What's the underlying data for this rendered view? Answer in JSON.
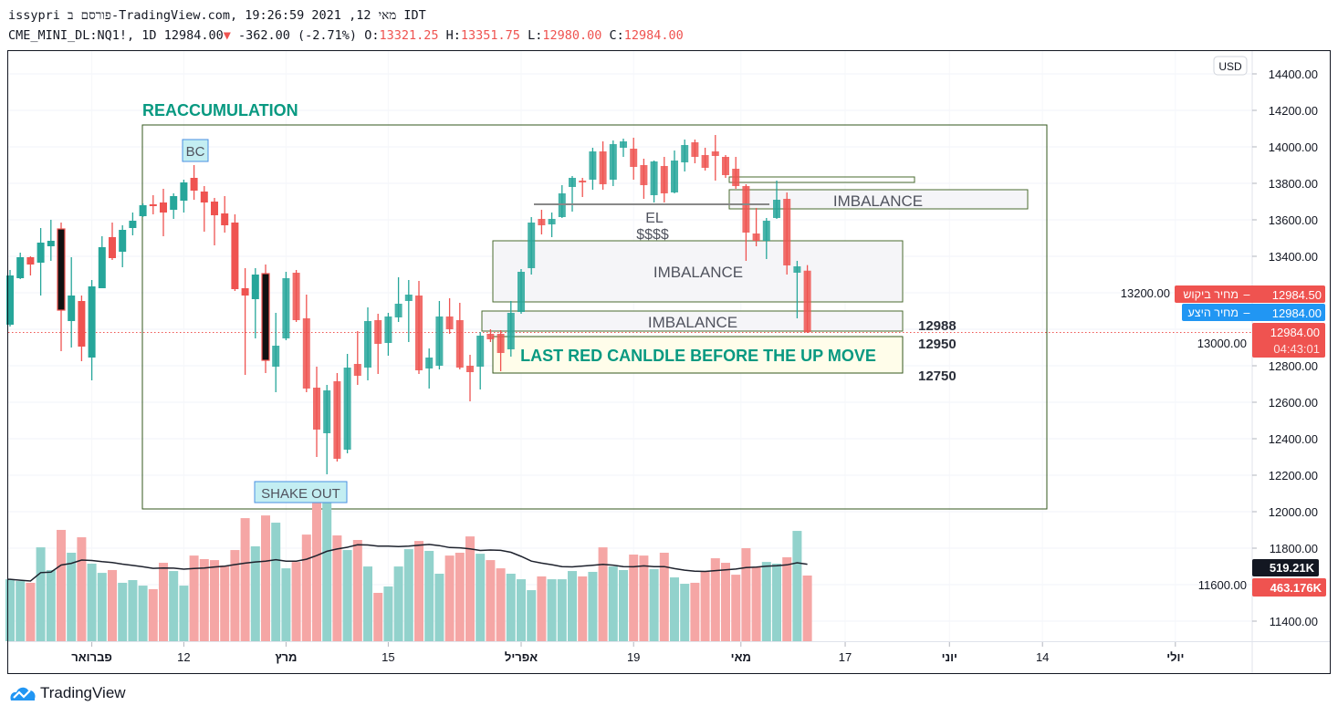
{
  "header": {
    "published_line": "issypri פורסם ב-TradingView.com, מאי 12, 2021 19:26:59 IDT",
    "symbol": "CME_MINI_DL:NQ1!, 1D",
    "last": "12984.00",
    "change": "-362.00 (-2.71%)",
    "o_label": "O:",
    "o": "13321.25",
    "h_label": "H:",
    "h": "13351.75",
    "l_label": "L:",
    "l": "12980.00",
    "c_label": "C:",
    "c": "12984.00"
  },
  "price_axis": {
    "currency": "USD",
    "bid_label": "מחיר ביקוש",
    "bid": "12984.50",
    "ask_label": "מחיר היצע",
    "ask": "12984.00",
    "last_price": "12984.00",
    "countdown": "04:43:01",
    "volume_ma_tag": "519.21K",
    "volume_tag": "463.176K"
  },
  "annotations": {
    "reaccumulation": "REACCUMULATION",
    "bc": "BC",
    "shake_out": "SHAKE OUT",
    "el": "EL",
    "dollars": "$$$$",
    "imbalance_top": "IMBALANCE",
    "imbalance_mid": "IMBALANCE",
    "imbalance_low": "IMBALANCE",
    "last_red": "LAST RED CANLDLE BEFORE THE UP MOVE",
    "level_1": "12988",
    "level_2": "12950",
    "level_3": "12750"
  },
  "footer": {
    "brand": "TradingView"
  },
  "colors": {
    "up": "#26a69a",
    "down": "#ef5350",
    "up_vol": "#92d2cc",
    "down_vol": "#f5a6a5",
    "teal_text": "#089981",
    "box": "#33571c",
    "bid": "#ef5350",
    "ask": "#2196f3"
  },
  "chart_data": {
    "type": "candlestick",
    "title": "CME_MINI_DL:NQ1!, 1D",
    "ylim": [
      11300,
      14450
    ],
    "y_ticks": [
      14400,
      14200,
      14000,
      13800,
      13600,
      13400,
      13200,
      13000,
      12800,
      12600,
      12400,
      12200,
      12000,
      11800,
      11600,
      11400
    ],
    "x_ticks": [
      {
        "label": "פברואר",
        "bar": 8,
        "bold": true
      },
      {
        "label": "12",
        "bar": 17
      },
      {
        "label": "מרץ",
        "bar": 27,
        "bold": true
      },
      {
        "label": "15",
        "bar": 37
      },
      {
        "label": "אפריל",
        "bar": 50,
        "bold": true
      },
      {
        "label": "19",
        "bar": 61
      },
      {
        "label": "מאי",
        "bar": 71.5,
        "bold": true
      },
      {
        "label": "17",
        "bar": 81.7
      },
      {
        "label": "יוני",
        "bar": 91.9,
        "bold": true
      },
      {
        "label": "14",
        "bar": 101
      },
      {
        "label": "יולי",
        "bar": 114,
        "bold": true
      }
    ],
    "ohlc_fields": [
      "open",
      "high",
      "low",
      "close"
    ],
    "ohlc": [
      [
        13025,
        13325,
        13015,
        13295
      ],
      [
        13280,
        13420,
        13275,
        13395
      ],
      [
        13395,
        13400,
        13295,
        13355
      ],
      [
        13365,
        13555,
        13185,
        13475
      ],
      [
        13455,
        13600,
        13375,
        13485
      ],
      [
        13550,
        13585,
        12880,
        13105
      ],
      [
        13045,
        13395,
        12900,
        13185
      ],
      [
        13155,
        13185,
        12825,
        12905
      ],
      [
        12845,
        13270,
        12720,
        13235
      ],
      [
        13225,
        13510,
        13225,
        13450
      ],
      [
        13505,
        13585,
        13380,
        13390
      ],
      [
        13425,
        13570,
        13340,
        13545
      ],
      [
        13555,
        13640,
        13515,
        13595
      ],
      [
        13620,
        13690,
        13615,
        13680
      ],
      [
        13685,
        13735,
        13630,
        13675
      ],
      [
        13695,
        13770,
        13510,
        13640
      ],
      [
        13655,
        13745,
        13605,
        13730
      ],
      [
        13705,
        13820,
        13640,
        13805
      ],
      [
        13830,
        13900,
        13710,
        13760
      ],
      [
        13755,
        13785,
        13535,
        13695
      ],
      [
        13700,
        13720,
        13460,
        13625
      ],
      [
        13635,
        13730,
        13530,
        13570
      ],
      [
        13585,
        13630,
        13210,
        13220
      ],
      [
        13225,
        13335,
        12750,
        13185
      ],
      [
        13165,
        13335,
        12950,
        13300
      ],
      [
        13305,
        13355,
        12760,
        12830
      ],
      [
        12795,
        13090,
        12655,
        12910
      ],
      [
        12950,
        13315,
        12940,
        13280
      ],
      [
        13310,
        13325,
        13040,
        13050
      ],
      [
        13060,
        13190,
        12655,
        12675
      ],
      [
        12680,
        12795,
        12300,
        12450
      ],
      [
        12430,
        12695,
        12205,
        12665
      ],
      [
        12715,
        12760,
        12275,
        12290
      ],
      [
        12340,
        12865,
        12320,
        12790
      ],
      [
        12810,
        12990,
        12695,
        12745
      ],
      [
        12790,
        13120,
        12720,
        13045
      ],
      [
        13050,
        13085,
        12755,
        12920
      ],
      [
        12925,
        13090,
        12855,
        13070
      ],
      [
        13065,
        13285,
        13040,
        13140
      ],
      [
        13155,
        13270,
        12930,
        13190
      ],
      [
        13185,
        13265,
        12755,
        12775
      ],
      [
        12785,
        12895,
        12675,
        12845
      ],
      [
        12800,
        13155,
        12780,
        13070
      ],
      [
        13070,
        13170,
        12975,
        13000
      ],
      [
        13050,
        13145,
        12780,
        12790
      ],
      [
        12800,
        12860,
        12605,
        12765
      ],
      [
        12795,
        12985,
        12670,
        12965
      ],
      [
        12975,
        13000,
        12930,
        12945
      ],
      [
        12975,
        12995,
        12770,
        12870
      ],
      [
        12890,
        13155,
        12850,
        13090
      ],
      [
        13095,
        13330,
        13085,
        13315
      ],
      [
        13335,
        13615,
        13300,
        13585
      ],
      [
        13605,
        13655,
        13520,
        13570
      ],
      [
        13575,
        13640,
        13505,
        13605
      ],
      [
        13615,
        13790,
        13610,
        13745
      ],
      [
        13780,
        13840,
        13645,
        13830
      ],
      [
        13815,
        13830,
        13725,
        13805
      ],
      [
        13820,
        13995,
        13765,
        13975
      ],
      [
        13975,
        14030,
        13765,
        13795
      ],
      [
        13820,
        14035,
        13785,
        14015
      ],
      [
        13995,
        14045,
        13945,
        14030
      ],
      [
        13990,
        14050,
        13820,
        13890
      ],
      [
        13900,
        13935,
        13715,
        13790
      ],
      [
        13735,
        13925,
        13695,
        13920
      ],
      [
        13895,
        13945,
        13695,
        13745
      ],
      [
        13750,
        13980,
        13745,
        13925
      ],
      [
        13915,
        14040,
        13865,
        14010
      ],
      [
        14025,
        14040,
        13910,
        13945
      ],
      [
        13955,
        13995,
        13870,
        13885
      ],
      [
        13975,
        14065,
        13815,
        13950
      ],
      [
        13945,
        13955,
        13830,
        13845
      ],
      [
        13880,
        13945,
        13770,
        13785
      ],
      [
        13785,
        13795,
        13375,
        13530
      ],
      [
        13525,
        13665,
        13455,
        13485
      ],
      [
        13485,
        13610,
        13385,
        13595
      ],
      [
        13610,
        13815,
        13605,
        13710
      ],
      [
        13715,
        13750,
        13300,
        13350
      ],
      [
        13310,
        13375,
        13060,
        13345
      ],
      [
        13321.25,
        13351.75,
        12980,
        12984
      ]
    ],
    "highlighted_bars": [
      5,
      25
    ],
    "volume_k": [
      437,
      424,
      412,
      662,
      502,
      785,
      624,
      733,
      547,
      482,
      502,
      412,
      431,
      392,
      367,
      553,
      495,
      392,
      604,
      579,
      572,
      534,
      643,
      868,
      669,
      887,
      836,
      514,
      559,
      752,
      1016,
      1029,
      746,
      643,
      714,
      527,
      341,
      386,
      527,
      649,
      707,
      637,
      476,
      604,
      624,
      739,
      617,
      572,
      514,
      476,
      437,
      360,
      457,
      437,
      437,
      495,
      457,
      489,
      662,
      527,
      502,
      611,
      604,
      508,
      624,
      450,
      405,
      412,
      495,
      585,
      553,
      469,
      656,
      521,
      559,
      547,
      592,
      778,
      463.176
    ],
    "volume_ma_period": 20,
    "last_price_line": 12984
  }
}
